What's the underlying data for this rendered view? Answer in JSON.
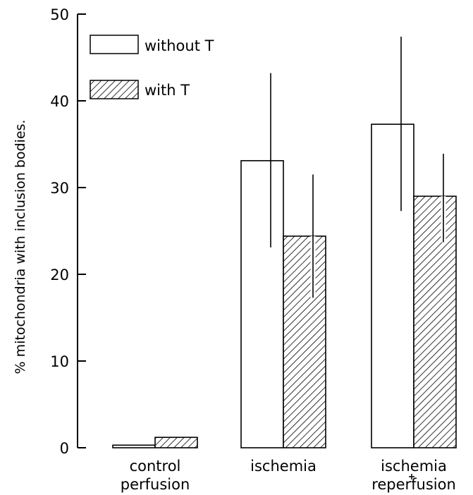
{
  "chart_data": {
    "type": "bar",
    "ylabel": "% mitochondria with inclusion bodies.",
    "ylim": [
      0,
      50
    ],
    "yticks": [
      0,
      10,
      20,
      30,
      40,
      50
    ],
    "categories": [
      {
        "line1": "control",
        "line2": "perfusion"
      },
      {
        "line1": "ischemia",
        "line2": ""
      },
      {
        "line1": "ischemia",
        "line2": "reperfusion"
      }
    ],
    "series": [
      {
        "name": "without T",
        "pattern": "open",
        "values": [
          0.3,
          33.1,
          37.3
        ],
        "error_upper": [
          0.3,
          43.2,
          47.4
        ],
        "error_lower": [
          0.3,
          23.1,
          27.3
        ]
      },
      {
        "name": "with T",
        "pattern": "hatched",
        "values": [
          1.2,
          24.4,
          29.0
        ],
        "error_upper": [
          1.2,
          31.5,
          33.9
        ],
        "error_lower": [
          1.2,
          17.3,
          23.7
        ]
      }
    ],
    "legend_position": "top-left",
    "grid": false,
    "colors": {
      "ink": "#000000",
      "background": "#ffffff"
    }
  }
}
